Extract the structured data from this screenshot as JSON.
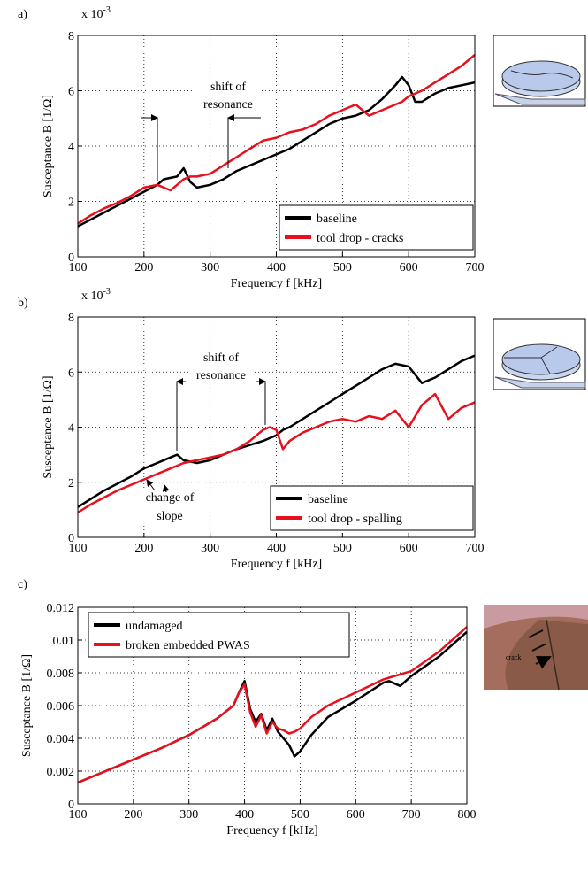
{
  "chart_data": [
    {
      "type": "line",
      "panel_label": "a)",
      "y_scale_label": "x 10",
      "y_scale_exp": "-3",
      "xlabel": "Frequency f [kHz]",
      "ylabel": "Susceptance B [1/Ω]",
      "x": [
        100,
        120,
        140,
        160,
        180,
        200,
        220,
        230,
        240,
        250,
        260,
        270,
        280,
        300,
        320,
        340,
        360,
        380,
        400,
        420,
        440,
        460,
        480,
        500,
        520,
        540,
        560,
        580,
        590,
        600,
        610,
        620,
        640,
        660,
        680,
        700
      ],
      "series": [
        {
          "name": "baseline",
          "color": "#000000",
          "values": [
            1.1,
            1.35,
            1.6,
            1.85,
            2.1,
            2.35,
            2.6,
            2.8,
            2.85,
            2.9,
            3.2,
            2.7,
            2.5,
            2.6,
            2.8,
            3.1,
            3.3,
            3.5,
            3.7,
            3.9,
            4.2,
            4.5,
            4.8,
            5.0,
            5.1,
            5.3,
            5.7,
            6.2,
            6.5,
            6.2,
            5.6,
            5.6,
            5.9,
            6.1,
            6.2,
            6.3
          ]
        },
        {
          "name": "tool drop - cracks",
          "color": "#e8101c",
          "values": [
            1.2,
            1.5,
            1.75,
            1.95,
            2.2,
            2.5,
            2.6,
            2.5,
            2.4,
            2.6,
            2.8,
            2.9,
            2.9,
            3.0,
            3.3,
            3.6,
            3.9,
            4.2,
            4.3,
            4.5,
            4.6,
            4.8,
            5.1,
            5.3,
            5.5,
            5.1,
            5.3,
            5.5,
            5.6,
            5.8,
            5.9,
            6.0,
            6.3,
            6.6,
            6.9,
            7.3
          ]
        }
      ],
      "annotations": [
        "shift of",
        "resonance"
      ],
      "xlim": [
        100,
        700
      ],
      "xticks": [
        100,
        200,
        300,
        400,
        500,
        600,
        700
      ],
      "ylim": [
        0,
        8
      ],
      "yticks": [
        0,
        2,
        4,
        6,
        8
      ],
      "grid": true,
      "legend": "lower right"
    },
    {
      "type": "line",
      "panel_label": "b)",
      "y_scale_label": "x 10",
      "y_scale_exp": "-3",
      "xlabel": "Frequency f [kHz]",
      "ylabel": "Susceptance B [1/Ω]",
      "x": [
        100,
        120,
        140,
        160,
        180,
        200,
        220,
        240,
        250,
        260,
        280,
        300,
        320,
        340,
        360,
        380,
        390,
        400,
        410,
        420,
        440,
        460,
        480,
        500,
        520,
        540,
        560,
        580,
        600,
        620,
        640,
        660,
        680,
        700
      ],
      "series": [
        {
          "name": "baseline",
          "color": "#000000",
          "values": [
            1.1,
            1.4,
            1.7,
            1.95,
            2.2,
            2.5,
            2.7,
            2.9,
            3.0,
            2.8,
            2.7,
            2.8,
            3.0,
            3.2,
            3.35,
            3.5,
            3.6,
            3.7,
            3.9,
            4.0,
            4.3,
            4.6,
            4.9,
            5.2,
            5.5,
            5.8,
            6.1,
            6.3,
            6.2,
            5.6,
            5.8,
            6.1,
            6.4,
            6.6
          ]
        },
        {
          "name": "tool drop - spalling",
          "color": "#e8101c",
          "values": [
            0.9,
            1.2,
            1.45,
            1.7,
            1.9,
            2.1,
            2.3,
            2.5,
            2.6,
            2.7,
            2.8,
            2.9,
            3.0,
            3.2,
            3.5,
            3.9,
            4.0,
            3.9,
            3.2,
            3.5,
            3.8,
            4.0,
            4.2,
            4.3,
            4.2,
            4.4,
            4.3,
            4.6,
            4.0,
            4.8,
            5.2,
            4.3,
            4.7,
            4.9
          ]
        }
      ],
      "annotations": [
        "shift of",
        "resonance",
        "change of",
        "slope"
      ],
      "xlim": [
        100,
        700
      ],
      "xticks": [
        100,
        200,
        300,
        400,
        500,
        600,
        700
      ],
      "ylim": [
        0,
        8
      ],
      "yticks": [
        0,
        2,
        4,
        6,
        8
      ],
      "grid": true,
      "legend": "lower right"
    },
    {
      "type": "line",
      "panel_label": "c)",
      "xlabel": "Frequency f [kHz]",
      "ylabel": "Susceptance B [1/Ω]",
      "x": [
        100,
        150,
        200,
        250,
        300,
        350,
        380,
        390,
        400,
        410,
        420,
        430,
        440,
        450,
        460,
        470,
        480,
        490,
        500,
        520,
        550,
        600,
        650,
        660,
        680,
        700,
        750,
        800
      ],
      "series": [
        {
          "name": "undamaged",
          "color": "#000000",
          "values": [
            0.0013,
            0.002,
            0.0027,
            0.0034,
            0.0042,
            0.0052,
            0.006,
            0.0068,
            0.0075,
            0.0058,
            0.005,
            0.0055,
            0.0045,
            0.0052,
            0.0044,
            0.004,
            0.0036,
            0.0029,
            0.0032,
            0.0042,
            0.0053,
            0.0063,
            0.0074,
            0.0075,
            0.0072,
            0.0078,
            0.009,
            0.0105
          ]
        },
        {
          "name": "broken embedded PWAS",
          "color": "#e8101c",
          "values": [
            0.0013,
            0.002,
            0.0027,
            0.0034,
            0.0042,
            0.0052,
            0.006,
            0.0068,
            0.0073,
            0.0056,
            0.0047,
            0.0054,
            0.0043,
            0.005,
            0.0046,
            0.0045,
            0.0043,
            0.0044,
            0.0046,
            0.0053,
            0.006,
            0.0068,
            0.0076,
            0.0077,
            0.0079,
            0.0081,
            0.0093,
            0.0108
          ]
        }
      ],
      "inset_label": "crack",
      "xlim": [
        100,
        800
      ],
      "xticks": [
        100,
        200,
        300,
        400,
        500,
        600,
        700,
        800
      ],
      "ylim": [
        0,
        0.012
      ],
      "yticks": [
        0,
        0.002,
        0.004,
        0.006,
        0.008,
        0.01,
        0.012
      ],
      "grid": true,
      "legend": "upper left"
    }
  ]
}
